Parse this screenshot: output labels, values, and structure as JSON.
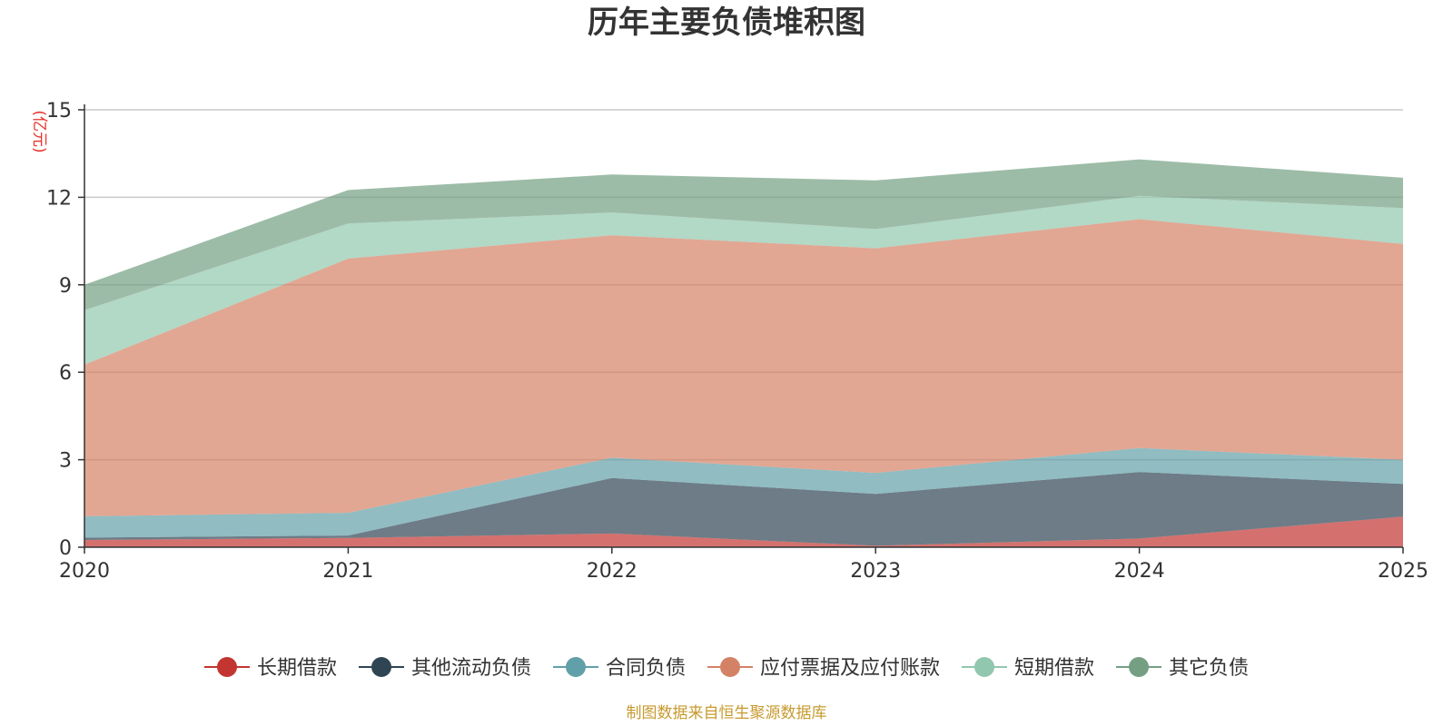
{
  "chart_data": {
    "type": "area",
    "stacked": true,
    "title": "历年主要负债堆积图",
    "unit": "(亿元)",
    "categories": [
      "2020",
      "2021",
      "2022",
      "2023",
      "2024",
      "2025"
    ],
    "yticks": [
      0,
      3,
      6,
      9,
      12,
      15
    ],
    "ylim": [
      0,
      15
    ],
    "grid": true,
    "legend_position": "bottom",
    "series": [
      {
        "name": "长期借款",
        "color": "#c23531",
        "values": [
          0.25,
          0.32,
          0.47,
          0.05,
          0.3,
          1.05
        ]
      },
      {
        "name": "其他流动负债",
        "color": "#2f4554",
        "values": [
          0.08,
          0.08,
          1.9,
          1.78,
          2.28,
          1.12
        ]
      },
      {
        "name": "合同负债",
        "color": "#61a0a8",
        "values": [
          0.73,
          0.78,
          0.7,
          0.72,
          0.82,
          0.83
        ]
      },
      {
        "name": "应付票据及应付账款",
        "color": "#d48265",
        "values": [
          5.2,
          8.72,
          7.63,
          7.7,
          7.85,
          7.4
        ]
      },
      {
        "name": "短期借款",
        "color": "#91c7ae",
        "values": [
          1.87,
          1.2,
          0.78,
          0.66,
          0.8,
          1.23
        ]
      },
      {
        "name": "其它负债",
        "color": "#749f83",
        "values": [
          0.87,
          1.15,
          1.3,
          1.67,
          1.25,
          1.04
        ]
      }
    ],
    "source": "制图数据来自恒生聚源数据库"
  }
}
